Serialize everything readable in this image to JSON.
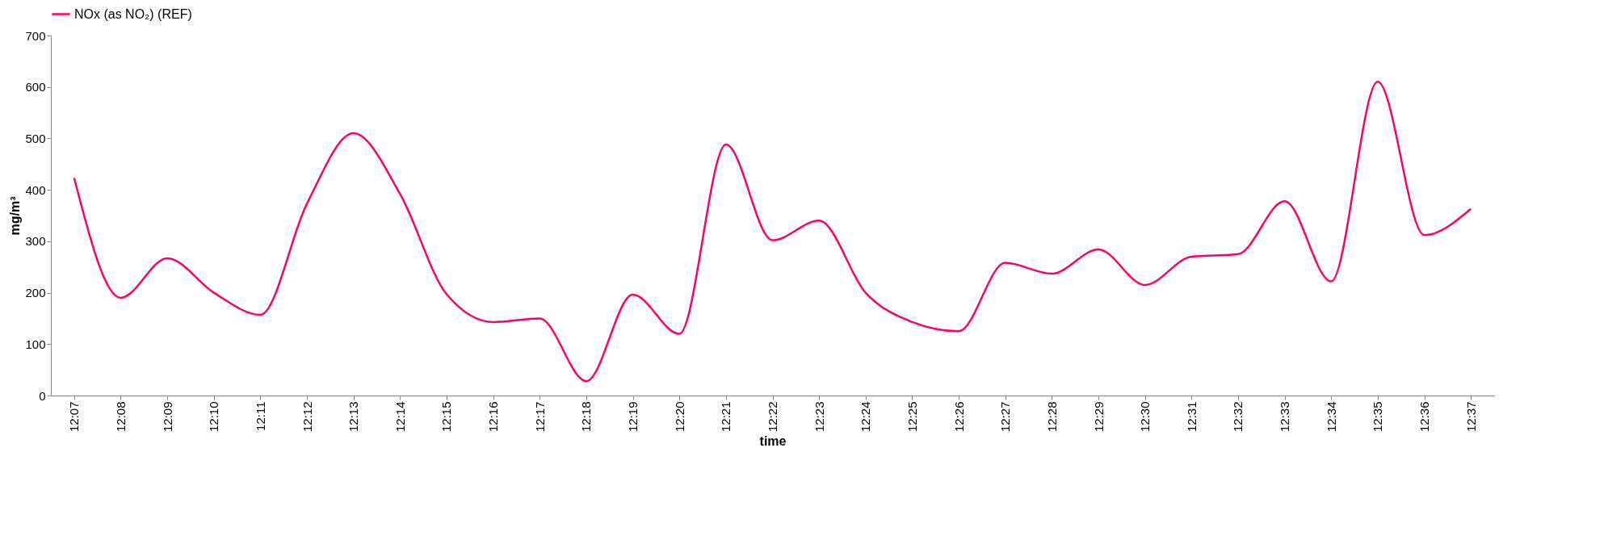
{
  "chart_data": {
    "type": "line",
    "xlabel": "time",
    "ylabel": "mg/m³",
    "categories": [
      "12:07",
      "12:08",
      "12:09",
      "12:10",
      "12:11",
      "12:12",
      "12:13",
      "12:14",
      "12:15",
      "12:16",
      "12:17",
      "12:18",
      "12:19",
      "12:20",
      "12:21",
      "12:22",
      "12:23",
      "12:24",
      "12:25",
      "12:26",
      "12:27",
      "12:28",
      "12:29",
      "12:30",
      "12:31",
      "12:32",
      "12:33",
      "12:34",
      "12:35",
      "12:36",
      "12:37"
    ],
    "series": [
      {
        "name": "NOx (as NO₂) (REF)",
        "color": "#ff0066",
        "values": [
          423,
          190,
          267,
          200,
          157,
          373,
          510,
          392,
          197,
          143,
          150,
          28,
          196,
          120,
          488,
          302,
          340,
          200,
          143,
          125,
          258,
          237,
          284,
          215,
          270,
          275,
          378,
          222,
          610,
          312,
          363
        ]
      }
    ],
    "ylim": [
      0,
      700
    ],
    "yticks": [
      0,
      100,
      200,
      300,
      400,
      500,
      600,
      700
    ],
    "grid": false,
    "legend": "top",
    "marker": "none",
    "line_style": "solid"
  }
}
